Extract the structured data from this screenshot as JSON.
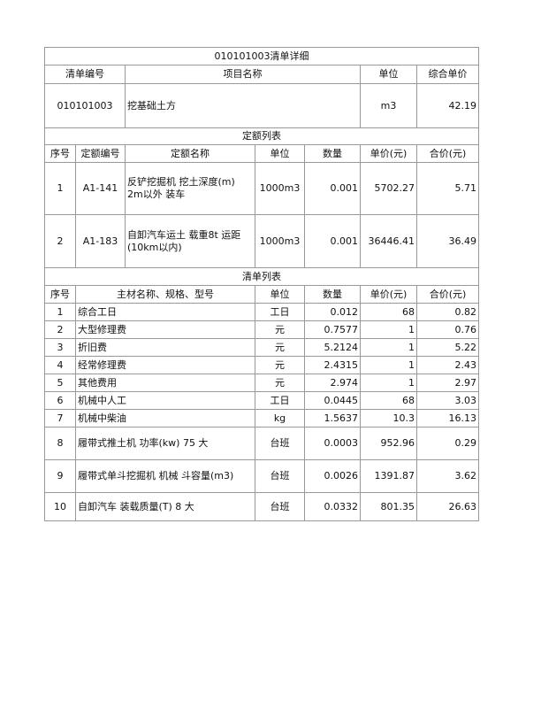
{
  "title": "010101003清单详细",
  "item_header": {
    "code": "清单编号",
    "name": "项目名称",
    "unit": "单位",
    "price": "综合单价"
  },
  "item": {
    "code": "010101003",
    "name": "挖基础土方",
    "unit": "m3",
    "price": "42.19"
  },
  "quota_section": {
    "title": "定额列表",
    "headers": [
      "序号",
      "定额编号",
      "定额名称",
      "单位",
      "数量",
      "单价(元)",
      "合价(元)"
    ],
    "rows": [
      {
        "no": "1",
        "code": "A1-141",
        "name": "反铲挖掘机 挖土深度(m) 2m以外 装车",
        "unit": "1000m3",
        "qty": "0.001",
        "price": "5702.27",
        "total": "5.71"
      },
      {
        "no": "2",
        "code": "A1-183",
        "name": "自卸汽车运土 载重8t 运距(10km以内)",
        "unit": "1000m3",
        "qty": "0.001",
        "price": "36446.41",
        "total": "36.49"
      }
    ]
  },
  "list_section": {
    "title": "清单列表",
    "headers": [
      "序号",
      "主材名称、规格、型号",
      "单位",
      "数量",
      "单价(元)",
      "合价(元)"
    ],
    "rows": [
      {
        "no": "1",
        "name": "综合工日",
        "unit": "工日",
        "qty": "0.012",
        "price": "68",
        "total": "0.82"
      },
      {
        "no": "2",
        "name": "大型修理费",
        "unit": "元",
        "qty": "0.7577",
        "price": "1",
        "total": "0.76"
      },
      {
        "no": "3",
        "name": "折旧费",
        "unit": "元",
        "qty": "5.2124",
        "price": "1",
        "total": "5.22"
      },
      {
        "no": "4",
        "name": "经常修理费",
        "unit": "元",
        "qty": "2.4315",
        "price": "1",
        "total": "2.43"
      },
      {
        "no": "5",
        "name": "其他费用",
        "unit": "元",
        "qty": "2.974",
        "price": "1",
        "total": "2.97"
      },
      {
        "no": "6",
        "name": "机械中人工",
        "unit": "工日",
        "qty": "0.0445",
        "price": "68",
        "total": "3.03"
      },
      {
        "no": "7",
        "name": "机械中柴油",
        "unit": "kg",
        "qty": "1.5637",
        "price": "10.3",
        "total": "16.13"
      },
      {
        "no": "8",
        "name": "履带式推土机 功率(kw) 75 大",
        "unit": "台班",
        "qty": "0.0003",
        "price": "952.96",
        "total": "0.29"
      },
      {
        "no": "9",
        "name": "履带式单斗挖掘机 机械 斗容量(m3)",
        "unit": "台班",
        "qty": "0.0026",
        "price": "1391.87",
        "total": "3.62"
      },
      {
        "no": "10",
        "name": "自卸汽车 装载质量(T) 8 大",
        "unit": "台班",
        "qty": "0.0332",
        "price": "801.35",
        "total": "26.63"
      }
    ]
  }
}
